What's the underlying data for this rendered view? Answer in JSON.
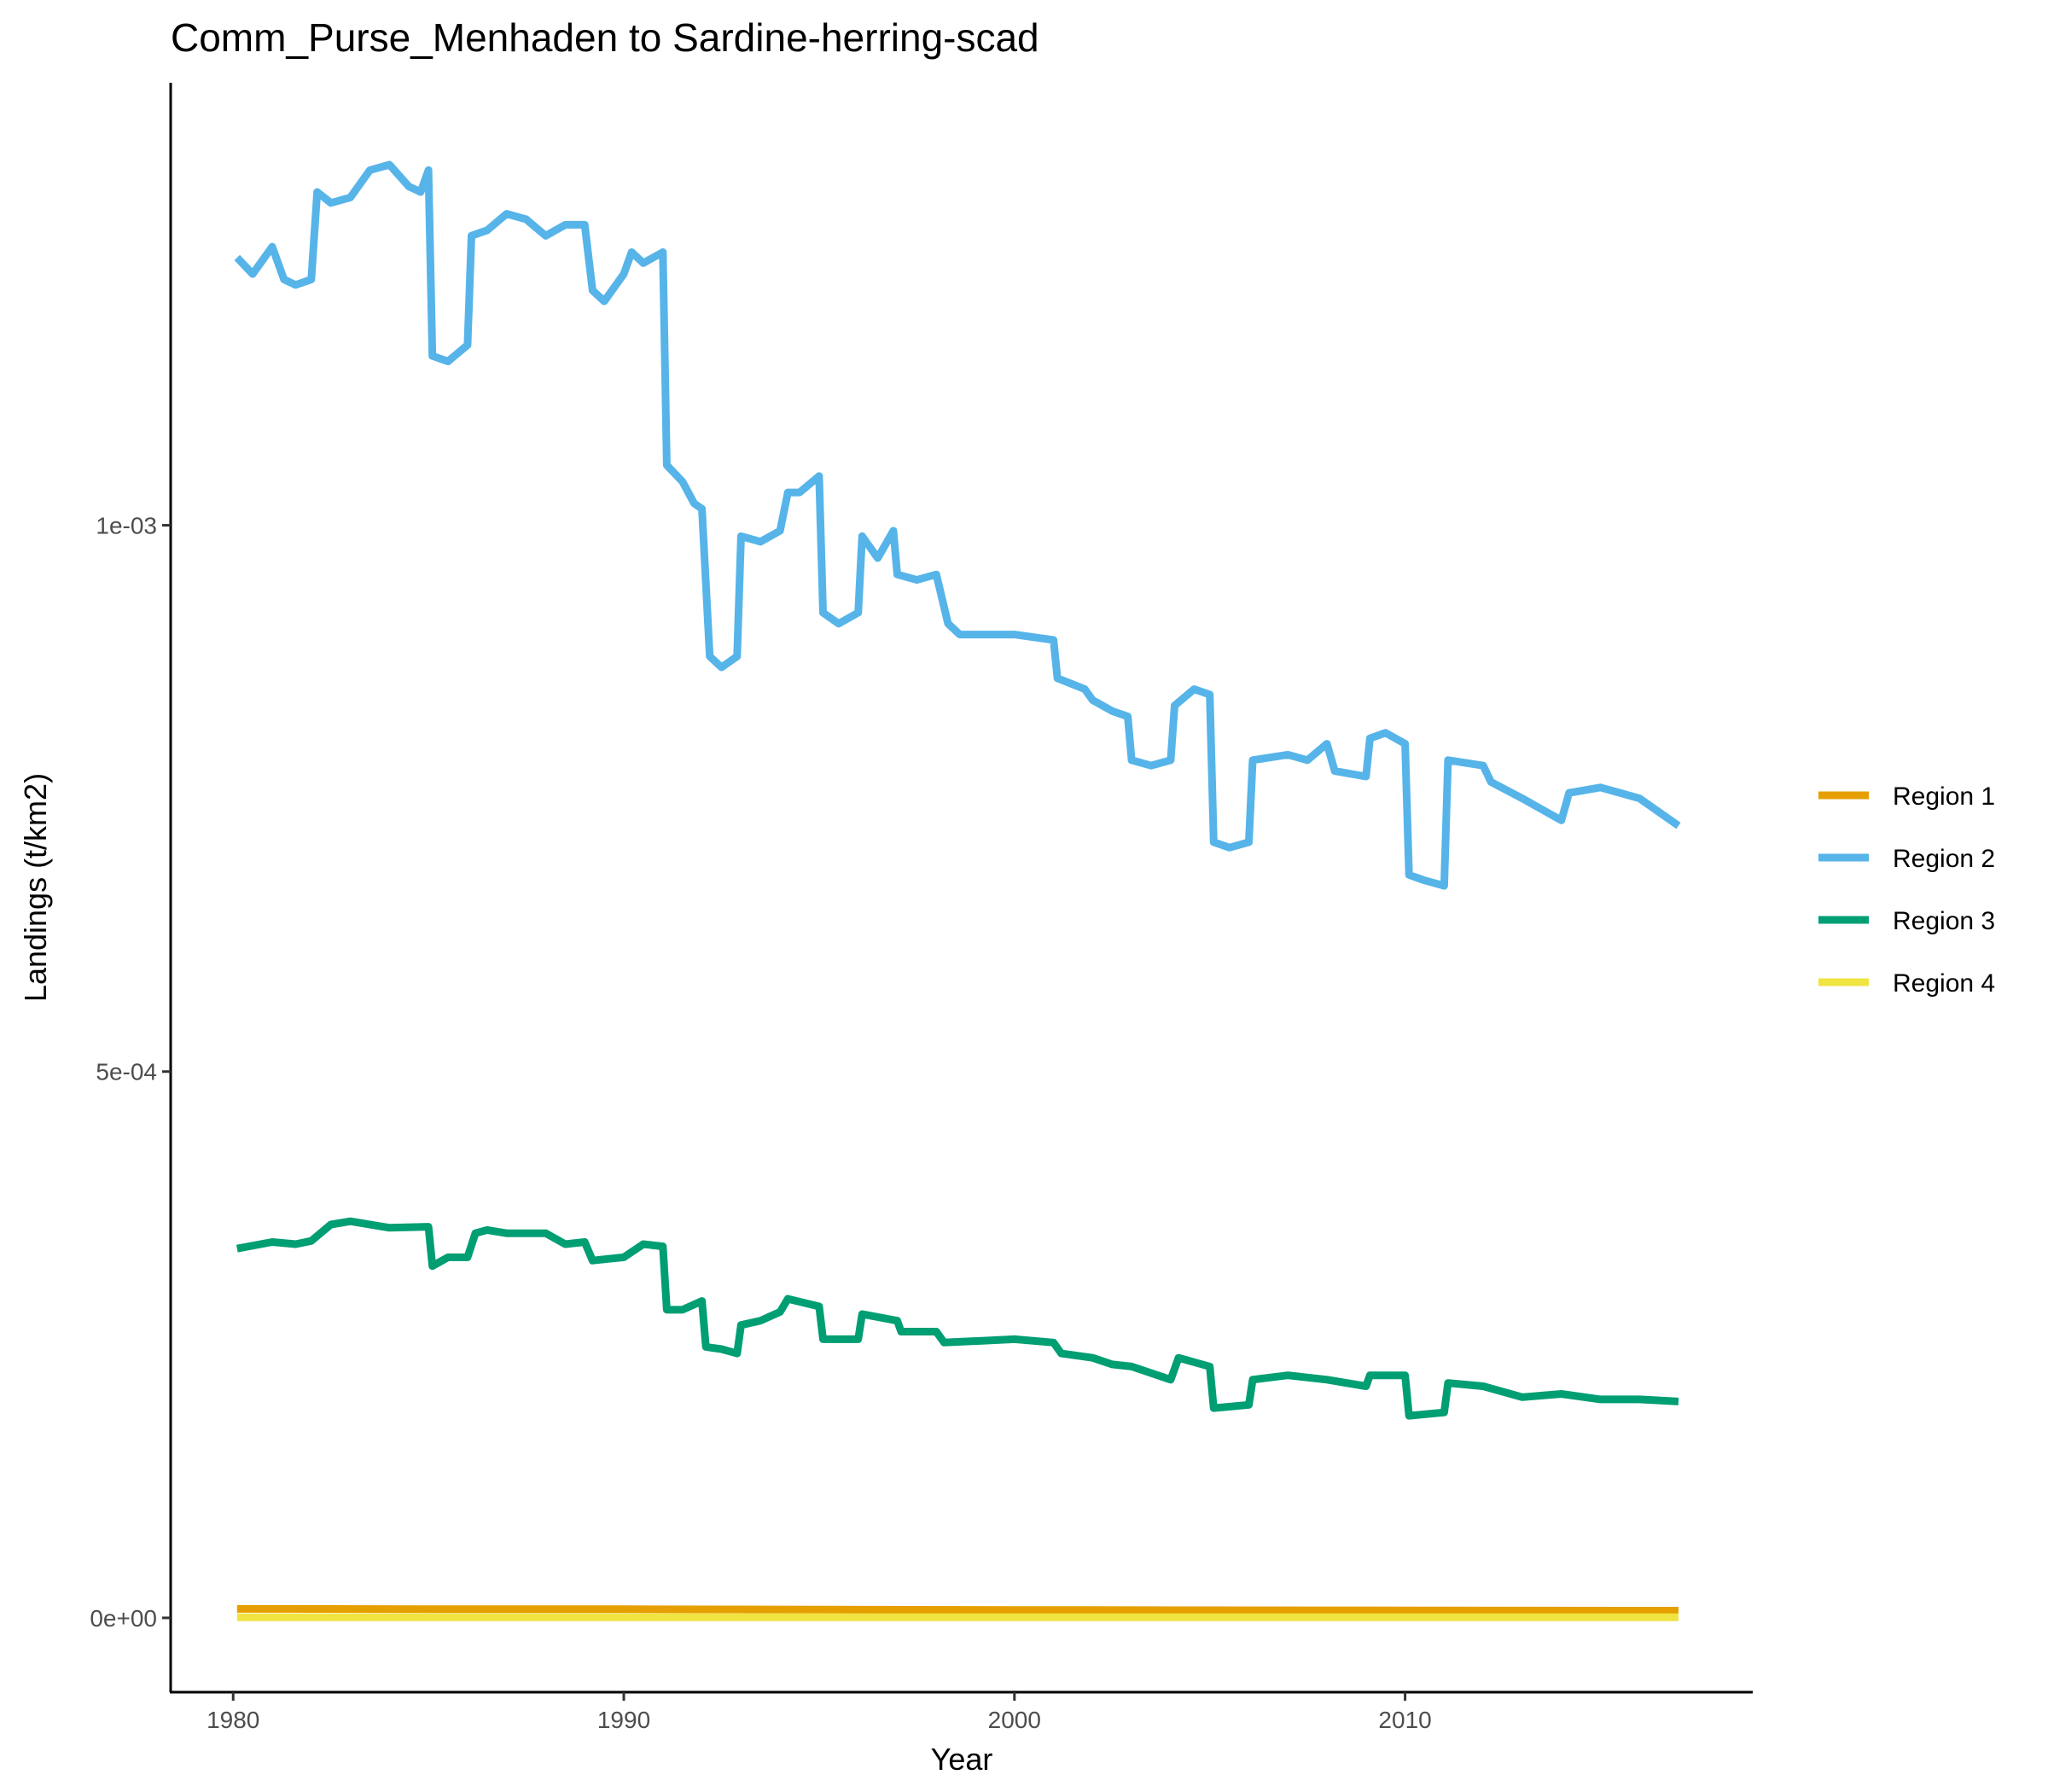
{
  "chart_data": {
    "type": "line",
    "title": "Comm_Purse_Menhaden to Sardine-herring-scad",
    "xlabel": "Year",
    "ylabel": "Landings (t/km2)",
    "xlim": [
      1978.4,
      2018.9
    ],
    "ylim": [
      -6.8e-05,
      0.001405
    ],
    "x_ticks": [
      1980,
      1990,
      2000,
      2010
    ],
    "x_tick_labels": [
      "1980",
      "1990",
      "2000",
      "2010"
    ],
    "y_ticks": [
      0,
      0.0005,
      0.001
    ],
    "y_tick_labels": [
      "0e+00",
      "5e-04",
      "1e-03"
    ],
    "grid": false,
    "legend_position": "right",
    "series": [
      {
        "name": "Region 1",
        "color": "#E69F00",
        "x": [
          1980.1,
          1985,
          1990,
          1995,
          2000,
          2005,
          2010,
          2017
        ],
        "y": [
          8.2e-06,
          8e-06,
          7.9e-06,
          7.5e-06,
          7.2e-06,
          7e-06,
          6.8e-06,
          6.6e-06
        ]
      },
      {
        "name": "Region 2",
        "color": "#56B4E9",
        "x": [
          1980.1,
          1980.5,
          1981,
          1981.3,
          1981.6,
          1982,
          1982.15,
          1982.5,
          1983,
          1983.5,
          1984,
          1984.5,
          1984.8,
          1985,
          1985.1,
          1985.5,
          1986,
          1986.1,
          1986.5,
          1987,
          1987.5,
          1988,
          1988.5,
          1989,
          1989.2,
          1989.5,
          1990,
          1990.2,
          1990.5,
          1991,
          1991.1,
          1991.5,
          1991.8,
          1992,
          1992.2,
          1992.5,
          1992.9,
          1993,
          1993.5,
          1994,
          1994.2,
          1994.5,
          1995,
          1995.1,
          1995.5,
          1996,
          1996.1,
          1996.5,
          1996.9,
          1997,
          1997.5,
          1998,
          1998.3,
          1998.6,
          2000,
          2001,
          2001.1,
          2001.8,
          2002,
          2002.5,
          2002.9,
          2003,
          2003.5,
          2004,
          2004.1,
          2004.6,
          2005,
          2005.1,
          2005.5,
          2006,
          2006.1,
          2007,
          2007.5,
          2008,
          2008.2,
          2009,
          2009.1,
          2009.5,
          2010,
          2010.1,
          2010.5,
          2011,
          2011.1,
          2012,
          2012.2,
          2013,
          2013.5,
          2014,
          2014.2,
          2015,
          2016,
          2017
        ],
        "y": [
          0.001245,
          0.00123,
          0.001255,
          0.001225,
          0.00122,
          0.001225,
          0.001305,
          0.001295,
          0.0013,
          0.001325,
          0.00133,
          0.00131,
          0.001305,
          0.001325,
          0.001155,
          0.00115,
          0.001165,
          0.001265,
          0.00127,
          0.001285,
          0.00128,
          0.001265,
          0.001275,
          0.001275,
          0.001215,
          0.001205,
          0.00123,
          0.00125,
          0.00124,
          0.00125,
          0.001055,
          0.00104,
          0.00102,
          0.001015,
          0.00088,
          0.00087,
          0.00088,
          0.00099,
          0.000985,
          0.000995,
          0.00103,
          0.00103,
          0.001045,
          0.00092,
          0.00091,
          0.00092,
          0.00099,
          0.00097,
          0.000995,
          0.000955,
          0.00095,
          0.000955,
          0.00091,
          0.0009,
          0.0009,
          0.000895,
          0.00086,
          0.00085,
          0.00084,
          0.00083,
          0.000825,
          0.000785,
          0.00078,
          0.000785,
          0.000835,
          0.00085,
          0.000845,
          0.00071,
          0.000705,
          0.00071,
          0.000785,
          0.00079,
          0.000785,
          0.0008,
          0.000775,
          0.00077,
          0.000805,
          0.00081,
          0.0008,
          0.00068,
          0.000675,
          0.00067,
          0.000785,
          0.00078,
          0.000765,
          0.00075,
          0.00074,
          0.00073,
          0.000755,
          0.00076,
          0.00075,
          0.000725
        ]
      },
      {
        "name": "Region 3",
        "color": "#009E73",
        "x": [
          1980.1,
          1981,
          1981.6,
          1982,
          1982.5,
          1983,
          1984,
          1985,
          1985.1,
          1985.5,
          1986,
          1986.2,
          1986.5,
          1987,
          1988,
          1988.5,
          1989,
          1989.2,
          1990,
          1990.5,
          1991,
          1991.1,
          1991.5,
          1992,
          1992.1,
          1992.5,
          1992.9,
          1993,
          1993.5,
          1994,
          1994.2,
          1995,
          1995.1,
          1996,
          1996.1,
          1997,
          1997.1,
          1998,
          1998.2,
          2000,
          2001,
          2001.2,
          2002,
          2002.5,
          2003,
          2004,
          2004.2,
          2005,
          2005.1,
          2006,
          2006.1,
          2007,
          2008,
          2009,
          2009.1,
          2010,
          2010.1,
          2011,
          2011.1,
          2012,
          2013,
          2014,
          2015,
          2016,
          2017
        ],
        "y": [
          0.000338,
          0.000344,
          0.000342,
          0.000345,
          0.00036,
          0.000363,
          0.000357,
          0.000358,
          0.000322,
          0.00033,
          0.00033,
          0.000352,
          0.000355,
          0.000352,
          0.000352,
          0.000342,
          0.000344,
          0.000327,
          0.00033,
          0.000342,
          0.00034,
          0.000282,
          0.000282,
          0.00029,
          0.000248,
          0.000246,
          0.000242,
          0.000268,
          0.000272,
          0.00028,
          0.000292,
          0.000285,
          0.000255,
          0.000255,
          0.000278,
          0.000272,
          0.000262,
          0.000262,
          0.000252,
          0.000255,
          0.000252,
          0.000242,
          0.000238,
          0.000232,
          0.00023,
          0.000218,
          0.000238,
          0.00023,
          0.000192,
          0.000195,
          0.000218,
          0.000222,
          0.000218,
          0.000212,
          0.000222,
          0.000222,
          0.000185,
          0.000188,
          0.000215,
          0.000212,
          0.000202,
          0.000205,
          0.0002,
          0.0002,
          0.000198
        ]
      },
      {
        "name": "Region 4",
        "color": "#F0E442",
        "x": [
          1980.1,
          1990,
          2000,
          2010,
          2017
        ],
        "y": [
          5e-07,
          5e-07,
          5e-07,
          5e-07,
          5e-07
        ]
      }
    ]
  }
}
